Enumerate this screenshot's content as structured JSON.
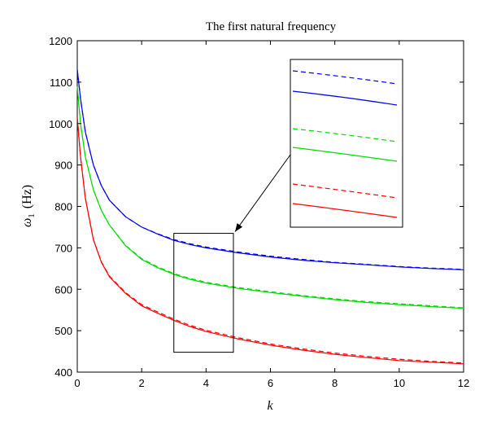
{
  "chart_data": {
    "type": "line",
    "title": "The first natural frequency",
    "xlabel": "k",
    "ylabel_symbol": "ω",
    "ylabel_sub": "1",
    "ylabel_unit": "(Hz)",
    "xlim": [
      0,
      12
    ],
    "ylim": [
      400,
      1200
    ],
    "xticks": [
      "0",
      "2",
      "4",
      "6",
      "8",
      "10",
      "12"
    ],
    "yticks": [
      "400",
      "500",
      "600",
      "700",
      "800",
      "900",
      "1000",
      "1100",
      "1200"
    ],
    "grid": false,
    "x": [
      0,
      0.1,
      0.25,
      0.5,
      0.75,
      1,
      1.5,
      2,
      2.5,
      3,
      3.5,
      4,
      5,
      6,
      7,
      8,
      9,
      10,
      11,
      12
    ],
    "series": [
      {
        "color": "#0000ff",
        "style": "solid",
        "values": [
          1130,
          1060,
          980,
          900,
          850,
          815,
          775,
          750,
          733,
          718,
          708,
          700,
          688,
          678,
          670,
          664,
          659,
          654,
          650,
          647
        ]
      },
      {
        "color": "#0000ff",
        "style": "dashed",
        "values": [
          1130,
          1060,
          980,
          900,
          850,
          815,
          775,
          750,
          734,
          720,
          710,
          702,
          690,
          680,
          672,
          665,
          660,
          655,
          651,
          648
        ]
      },
      {
        "color": "#00dd00",
        "style": "solid",
        "values": [
          1090,
          1000,
          920,
          840,
          790,
          755,
          705,
          672,
          652,
          636,
          624,
          615,
          602,
          592,
          583,
          575,
          568,
          563,
          558,
          554
        ]
      },
      {
        "color": "#00dd00",
        "style": "dashed",
        "values": [
          1090,
          1000,
          920,
          840,
          790,
          755,
          706,
          674,
          654,
          638,
          626,
          617,
          604,
          594,
          585,
          577,
          570,
          565,
          560,
          555
        ]
      },
      {
        "color": "#ff0000",
        "style": "solid",
        "values": [
          1015,
          920,
          820,
          720,
          665,
          630,
          590,
          560,
          542,
          525,
          510,
          498,
          480,
          465,
          453,
          443,
          435,
          428,
          424,
          420
        ]
      },
      {
        "color": "#ff0000",
        "style": "dashed",
        "values": [
          1015,
          920,
          820,
          720,
          666,
          632,
          592,
          563,
          545,
          528,
          513,
          501,
          483,
          468,
          456,
          446,
          438,
          431,
          426,
          422
        ]
      }
    ],
    "zoom_region": {
      "x": [
        3,
        4.85
      ],
      "y": [
        448,
        735
      ]
    }
  }
}
